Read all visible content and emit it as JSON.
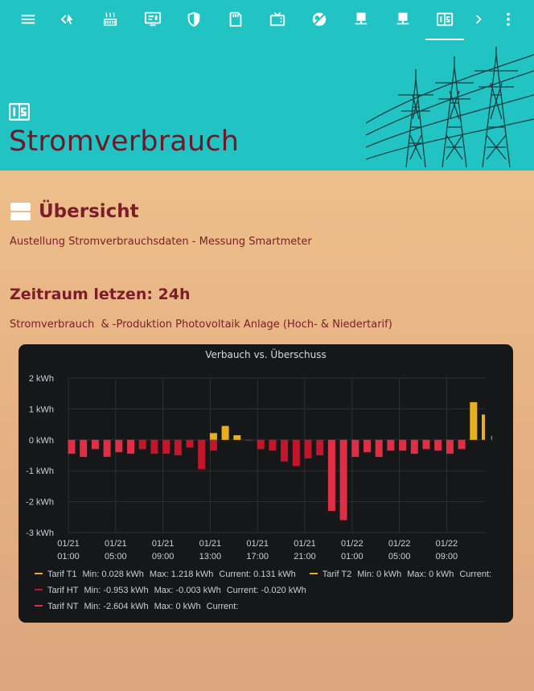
{
  "toolbar": {
    "icons": [
      "menu-icon",
      "back-icon",
      "heater-icon",
      "monitor-icon",
      "shield-icon",
      "sd-card-icon",
      "tv-icon",
      "weather-icon",
      "lan-icon-1",
      "lan-icon-2",
      "counter-icon",
      "chevron-right-icon",
      "more-vertical-icon"
    ]
  },
  "header": {
    "view_icon": "counter-icon",
    "title": "Stromverbrauch"
  },
  "overview": {
    "icon": "view-agenda-icon",
    "title": "Übersicht",
    "subtitle": "Austellung Stromverbrauchsdaten - Messung Smartmeter"
  },
  "period": {
    "title": "Zeitraum letzen: 24h",
    "caption": "Stromverbrauch  & -Produktion Photovoltaik Anlage (Hoch- & Niedertarif)"
  },
  "colors": {
    "header_bg": "#22c3c3",
    "accent_text": "#7d1c2b",
    "series_t1": "#e8b020",
    "series_t2": "#e8b020",
    "series_ht": "#c4162a",
    "series_nt": "#e02f44",
    "panel_bg": "#161719"
  },
  "chart_data": {
    "type": "bar",
    "title": "Verbauch vs. Überschuss",
    "ylabel": "",
    "xlabel": "",
    "ylim": [
      -3,
      2
    ],
    "y_ticks": [
      "2 kWh",
      "1 kWh",
      "0 kWh",
      "-1 kWh",
      "-2 kWh",
      "-3 kWh"
    ],
    "x_ticks": [
      {
        "date": "01/21",
        "time": "01:00"
      },
      {
        "date": "01/21",
        "time": "05:00"
      },
      {
        "date": "01/21",
        "time": "09:00"
      },
      {
        "date": "01/21",
        "time": "13:00"
      },
      {
        "date": "01/21",
        "time": "17:00"
      },
      {
        "date": "01/21",
        "time": "21:00"
      },
      {
        "date": "01/22",
        "time": "01:00"
      },
      {
        "date": "01/22",
        "time": "05:00"
      },
      {
        "date": "01/22",
        "time": "09:00"
      }
    ],
    "x_start_hour": 0,
    "x_end_hour": 35.8,
    "grid": true,
    "legend_position": "bottom",
    "bars": [
      {
        "hour": 0,
        "series": "Tarif NT",
        "value": -0.45
      },
      {
        "hour": 1,
        "series": "Tarif NT",
        "value": -0.55
      },
      {
        "hour": 2,
        "series": "Tarif NT",
        "value": -0.3
      },
      {
        "hour": 3,
        "series": "Tarif NT",
        "value": -0.55
      },
      {
        "hour": 4,
        "series": "Tarif NT",
        "value": -0.4
      },
      {
        "hour": 5,
        "series": "Tarif NT",
        "value": -0.45
      },
      {
        "hour": 6,
        "series": "Tarif HT",
        "value": -0.3
      },
      {
        "hour": 7,
        "series": "Tarif HT",
        "value": -0.45
      },
      {
        "hour": 8,
        "series": "Tarif HT",
        "value": -0.45
      },
      {
        "hour": 9,
        "series": "Tarif HT",
        "value": -0.5
      },
      {
        "hour": 10,
        "series": "Tarif HT",
        "value": -0.25
      },
      {
        "hour": 11,
        "series": "Tarif HT",
        "value": -0.95
      },
      {
        "hour": 12,
        "series": "Tarif T1",
        "value": 0.22
      },
      {
        "hour": 12,
        "series": "Tarif HT",
        "value": -0.35
      },
      {
        "hour": 13,
        "series": "Tarif T1",
        "value": 0.45
      },
      {
        "hour": 14,
        "series": "Tarif T1",
        "value": 0.15
      },
      {
        "hour": 15,
        "series": "Tarif HT",
        "value": -0.02
      },
      {
        "hour": 16,
        "series": "Tarif HT",
        "value": -0.3
      },
      {
        "hour": 17,
        "series": "Tarif HT",
        "value": -0.35
      },
      {
        "hour": 18,
        "series": "Tarif HT",
        "value": -0.7
      },
      {
        "hour": 19,
        "series": "Tarif HT",
        "value": -0.85
      },
      {
        "hour": 20,
        "series": "Tarif HT",
        "value": -0.6
      },
      {
        "hour": 21,
        "series": "Tarif HT",
        "value": -0.5
      },
      {
        "hour": 22,
        "series": "Tarif NT",
        "value": -2.3
      },
      {
        "hour": 23,
        "series": "Tarif NT",
        "value": -2.6
      },
      {
        "hour": 24,
        "series": "Tarif NT",
        "value": -0.55
      },
      {
        "hour": 25,
        "series": "Tarif NT",
        "value": -0.4
      },
      {
        "hour": 26,
        "series": "Tarif NT",
        "value": -0.55
      },
      {
        "hour": 27,
        "series": "Tarif NT",
        "value": -0.35
      },
      {
        "hour": 28,
        "series": "Tarif NT",
        "value": -0.35
      },
      {
        "hour": 29,
        "series": "Tarif NT",
        "value": -0.45
      },
      {
        "hour": 30,
        "series": "Tarif NT",
        "value": -0.3
      },
      {
        "hour": 31,
        "series": "Tarif NT",
        "value": -0.35
      },
      {
        "hour": 32,
        "series": "Tarif NT",
        "value": -0.45
      },
      {
        "hour": 33,
        "series": "Tarif NT",
        "value": -0.3
      },
      {
        "hour": 34,
        "series": "Tarif T1",
        "value": 1.22
      },
      {
        "hour": 35,
        "series": "Tarif T1",
        "value": 0.82
      },
      {
        "hour": 35.8,
        "series": "Tarif T1",
        "value": 0.13
      }
    ],
    "legend": [
      [
        {
          "name": "Tarif T1",
          "color": "#e8b020",
          "min": "Min: 0.028 kWh",
          "max": "Max: 1.218 kWh",
          "current": "Current: 0.131 kWh"
        },
        {
          "name": "Tarif T2",
          "color": "#e8b020",
          "min": "Min: 0 kWh",
          "max": "Max: 0 kWh",
          "current": "Current:"
        }
      ],
      [
        {
          "name": "Tarif HT",
          "color": "#c4162a",
          "min": "Min: -0.953 kWh",
          "max": "Max: -0.003 kWh",
          "current": "Current: -0.020 kWh"
        }
      ],
      [
        {
          "name": "Tarif NT",
          "color": "#e02f44",
          "min": "Min: -2.604 kWh",
          "max": "Max: 0 kWh",
          "current": "Current:"
        }
      ]
    ]
  }
}
